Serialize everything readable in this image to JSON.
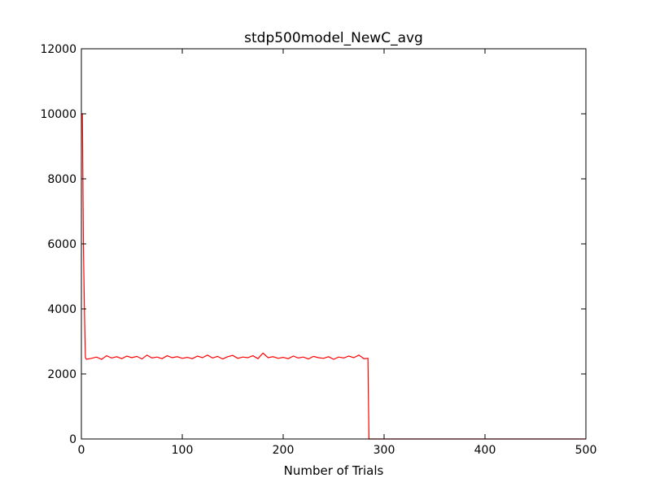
{
  "chart_data": {
    "type": "line",
    "title": "stdp500model_NewC_avg",
    "x_label": "Number of Trials",
    "x": [
      0,
      1,
      2,
      3,
      4,
      5,
      10,
      15,
      20,
      25,
      30,
      35,
      40,
      45,
      50,
      55,
      60,
      65,
      70,
      75,
      80,
      85,
      90,
      95,
      100,
      105,
      110,
      115,
      120,
      125,
      130,
      135,
      140,
      145,
      150,
      155,
      160,
      165,
      170,
      175,
      180,
      185,
      190,
      195,
      200,
      205,
      210,
      215,
      220,
      225,
      230,
      235,
      240,
      245,
      250,
      255,
      260,
      265,
      270,
      275,
      280,
      284,
      285,
      500
    ],
    "series": [
      {
        "name": "avg",
        "color": "#ff0000",
        "values": [
          10000,
          10000,
          6000,
          4000,
          2500,
          2450,
          2480,
          2520,
          2450,
          2560,
          2490,
          2530,
          2470,
          2550,
          2500,
          2540,
          2460,
          2580,
          2490,
          2520,
          2470,
          2560,
          2500,
          2530,
          2480,
          2510,
          2470,
          2550,
          2500,
          2580,
          2490,
          2540,
          2460,
          2530,
          2570,
          2480,
          2520,
          2500,
          2560,
          2470,
          2640,
          2500,
          2530,
          2480,
          2510,
          2470,
          2550,
          2490,
          2520,
          2460,
          2540,
          2500,
          2480,
          2530,
          2450,
          2520,
          2490,
          2550,
          2500,
          2580,
          2470,
          2480,
          0,
          0
        ]
      }
    ],
    "xlim": [
      0,
      500
    ],
    "ylim": [
      0,
      12000
    ],
    "xticks": [
      0,
      100,
      200,
      300,
      400,
      500
    ],
    "yticks": [
      0,
      2000,
      4000,
      6000,
      8000,
      10000,
      12000
    ]
  }
}
